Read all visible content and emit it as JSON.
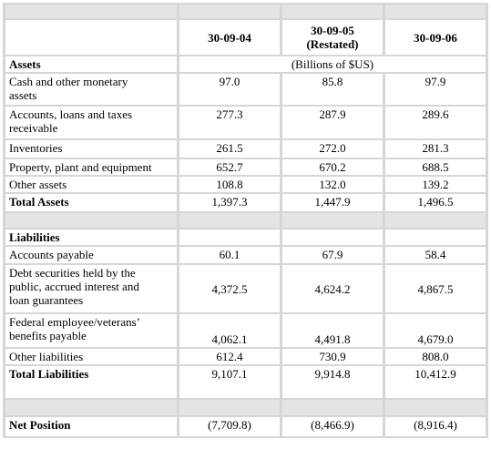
{
  "table": {
    "columns": [
      {
        "date": "30-09-04"
      },
      {
        "date": "30-09-05",
        "note": "(Restated)"
      },
      {
        "date": "30-09-06"
      }
    ],
    "sections": [
      {
        "heading": "Assets",
        "unit": "(Billions of $US)",
        "rows": [
          {
            "label": "Cash and other monetary assets",
            "values": [
              "97.0",
              "85.8",
              "97.9"
            ]
          },
          {
            "label": "Accounts, loans and taxes receivable",
            "values": [
              "277.3",
              "287.9",
              "289.6"
            ]
          },
          {
            "label": "Inventories",
            "values": [
              "261.5",
              "272.0",
              "281.3"
            ]
          },
          {
            "label": "Property, plant and equipment",
            "values": [
              "652.7",
              "670.2",
              "688.5"
            ]
          },
          {
            "label": "Other assets",
            "values": [
              "108.8",
              "132.0",
              "139.2"
            ]
          }
        ],
        "total": {
          "label": "Total Assets",
          "values": [
            "1,397.3",
            "1,447.9",
            "1,496.5"
          ]
        }
      },
      {
        "heading": "Liabilities",
        "rows": [
          {
            "label": "Accounts payable",
            "values": [
              "60.1",
              "67.9",
              "58.4"
            ]
          },
          {
            "label": "Debt securities held by the public, accrued interest and loan guarantees",
            "values": [
              "4,372.5",
              "4,624.2",
              "4,867.5"
            ]
          },
          {
            "label": "Federal employee/veterans’ benefits payable",
            "values": [
              "4,062.1",
              "4,491.8",
              "4,679.0"
            ]
          },
          {
            "label": "Other liabilities",
            "values": [
              "612.4",
              "730.9",
              "808.0"
            ]
          }
        ],
        "total": {
          "label": "Total Liabilities",
          "values": [
            "9,107.1",
            "9,914.8",
            "10,412.9"
          ]
        }
      }
    ],
    "net_position": {
      "label": "Net Position",
      "values": [
        "(7,709.8)",
        "(8,466.9)",
        "(8,916.4)"
      ]
    }
  }
}
